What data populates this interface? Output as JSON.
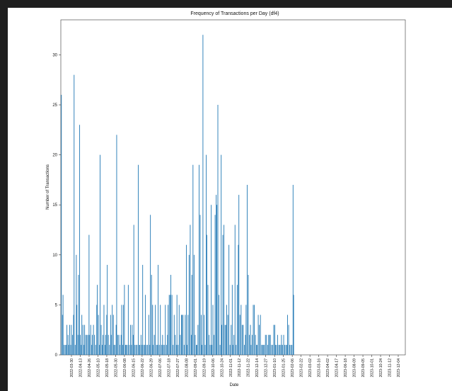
{
  "window": {
    "background": "#1f1f1f"
  },
  "chart_data": {
    "type": "bar",
    "title": "Frequency of Transactions per Day (df4)",
    "xlabel": "Date",
    "ylabel": "Number of Transactions",
    "ylim": [
      0,
      33.5
    ],
    "yticks": [
      0,
      5,
      10,
      15,
      20,
      25,
      30
    ],
    "xlim": [
      "2022-03-24",
      "2023-12-07"
    ],
    "xtick_labels": [
      "2022-03-30",
      "2022-04-13",
      "2022-04-26",
      "2022-05-10",
      "2022-05-18",
      "2022-05-30",
      "2022-06-08",
      "2022-06-15",
      "2022-06-22",
      "2022-06-29",
      "2022-07-06",
      "2022-07-18",
      "2022-07-27",
      "2022-08-08",
      "2022-09-01",
      "2022-09-19",
      "2022-10-06",
      "2022-10-24",
      "2022-11-01",
      "2022-11-12",
      "2022-11-22",
      "2022-12-14",
      "2022-12-27",
      "2023-01-10",
      "2023-01-25",
      "2023-02-06",
      "2023-02-22",
      "2023-03-02",
      "2023-03-16",
      "2023-04-02",
      "2023-04-17",
      "2023-06-18",
      "2023-08-09",
      "2023-09-05",
      "2023-10-01",
      "2023-10-24",
      "2023-11-12",
      "2023-12-04"
    ],
    "bar_color": "#1f77b4",
    "grid": false,
    "points": [
      {
        "x": "2022-03-25",
        "y": 26
      },
      {
        "x": "2022-03-27",
        "y": 4
      },
      {
        "x": "2022-03-28",
        "y": 6
      },
      {
        "x": "2022-03-30",
        "y": 1
      },
      {
        "x": "2022-04-01",
        "y": 1
      },
      {
        "x": "2022-04-03",
        "y": 1
      },
      {
        "x": "2022-04-04",
        "y": 3
      },
      {
        "x": "2022-04-06",
        "y": 2
      },
      {
        "x": "2022-04-07",
        "y": 1
      },
      {
        "x": "2022-04-09",
        "y": 3
      },
      {
        "x": "2022-04-11",
        "y": 1
      },
      {
        "x": "2022-04-12",
        "y": 3
      },
      {
        "x": "2022-04-14",
        "y": 2
      },
      {
        "x": "2022-04-16",
        "y": 4
      },
      {
        "x": "2022-04-17",
        "y": 28
      },
      {
        "x": "2022-04-19",
        "y": 1
      },
      {
        "x": "2022-04-21",
        "y": 10
      },
      {
        "x": "2022-04-22",
        "y": 5
      },
      {
        "x": "2022-04-24",
        "y": 2
      },
      {
        "x": "2022-04-25",
        "y": 8
      },
      {
        "x": "2022-04-27",
        "y": 23
      },
      {
        "x": "2022-04-28",
        "y": 2
      },
      {
        "x": "2022-04-30",
        "y": 1
      },
      {
        "x": "2022-05-01",
        "y": 4
      },
      {
        "x": "2022-05-03",
        "y": 3
      },
      {
        "x": "2022-05-05",
        "y": 1
      },
      {
        "x": "2022-05-06",
        "y": 3
      },
      {
        "x": "2022-05-08",
        "y": 2
      },
      {
        "x": "2022-05-10",
        "y": 2
      },
      {
        "x": "2022-05-12",
        "y": 2
      },
      {
        "x": "2022-05-14",
        "y": 12
      },
      {
        "x": "2022-05-15",
        "y": 2
      },
      {
        "x": "2022-05-17",
        "y": 3
      },
      {
        "x": "2022-05-19",
        "y": 1
      },
      {
        "x": "2022-05-20",
        "y": 2
      },
      {
        "x": "2022-05-22",
        "y": 3
      },
      {
        "x": "2022-05-24",
        "y": 2
      },
      {
        "x": "2022-05-26",
        "y": 1
      },
      {
        "x": "2022-05-28",
        "y": 5
      },
      {
        "x": "2022-05-29",
        "y": 7
      },
      {
        "x": "2022-05-31",
        "y": 4
      },
      {
        "x": "2022-06-02",
        "y": 1
      },
      {
        "x": "2022-06-03",
        "y": 20
      },
      {
        "x": "2022-06-05",
        "y": 3
      },
      {
        "x": "2022-06-07",
        "y": 1
      },
      {
        "x": "2022-06-08",
        "y": 2
      },
      {
        "x": "2022-06-10",
        "y": 5
      },
      {
        "x": "2022-06-12",
        "y": 1
      },
      {
        "x": "2022-06-13",
        "y": 2
      },
      {
        "x": "2022-06-15",
        "y": 4
      },
      {
        "x": "2022-06-16",
        "y": 9
      },
      {
        "x": "2022-06-18",
        "y": 2
      },
      {
        "x": "2022-06-20",
        "y": 1
      },
      {
        "x": "2022-06-22",
        "y": 4
      },
      {
        "x": "2022-06-23",
        "y": 2
      },
      {
        "x": "2022-06-25",
        "y": 5
      },
      {
        "x": "2022-06-27",
        "y": 4
      },
      {
        "x": "2022-06-28",
        "y": 1
      },
      {
        "x": "2022-06-30",
        "y": 1
      },
      {
        "x": "2022-07-02",
        "y": 3
      },
      {
        "x": "2022-07-03",
        "y": 22
      },
      {
        "x": "2022-07-05",
        "y": 2
      },
      {
        "x": "2022-07-07",
        "y": 2
      },
      {
        "x": "2022-07-09",
        "y": 1
      },
      {
        "x": "2022-07-11",
        "y": 2
      },
      {
        "x": "2022-07-12",
        "y": 5
      },
      {
        "x": "2022-07-14",
        "y": 1
      },
      {
        "x": "2022-07-15",
        "y": 5
      },
      {
        "x": "2022-07-17",
        "y": 7
      },
      {
        "x": "2022-07-19",
        "y": 1
      },
      {
        "x": "2022-07-20",
        "y": 1
      },
      {
        "x": "2022-07-22",
        "y": 1
      },
      {
        "x": "2022-07-24",
        "y": 7
      },
      {
        "x": "2022-07-26",
        "y": 1
      },
      {
        "x": "2022-07-28",
        "y": 3
      },
      {
        "x": "2022-07-30",
        "y": 1
      },
      {
        "x": "2022-07-31",
        "y": 3
      },
      {
        "x": "2022-08-02",
        "y": 2
      },
      {
        "x": "2022-08-03",
        "y": 13
      },
      {
        "x": "2022-08-05",
        "y": 1
      },
      {
        "x": "2022-08-07",
        "y": 1
      },
      {
        "x": "2022-08-09",
        "y": 1
      },
      {
        "x": "2022-08-11",
        "y": 19
      },
      {
        "x": "2022-08-13",
        "y": 1
      },
      {
        "x": "2022-08-14",
        "y": 1
      },
      {
        "x": "2022-08-16",
        "y": 2
      },
      {
        "x": "2022-08-18",
        "y": 1
      },
      {
        "x": "2022-08-19",
        "y": 9
      },
      {
        "x": "2022-08-21",
        "y": 1
      },
      {
        "x": "2022-08-23",
        "y": 1
      },
      {
        "x": "2022-08-24",
        "y": 6
      },
      {
        "x": "2022-08-26",
        "y": 1
      },
      {
        "x": "2022-08-28",
        "y": 1
      },
      {
        "x": "2022-08-30",
        "y": 4
      },
      {
        "x": "2022-09-01",
        "y": 1
      },
      {
        "x": "2022-09-02",
        "y": 14
      },
      {
        "x": "2022-09-04",
        "y": 8
      },
      {
        "x": "2022-09-06",
        "y": 5
      },
      {
        "x": "2022-09-07",
        "y": 1
      },
      {
        "x": "2022-09-09",
        "y": 2
      },
      {
        "x": "2022-09-11",
        "y": 5
      },
      {
        "x": "2022-09-13",
        "y": 1
      },
      {
        "x": "2022-09-15",
        "y": 1
      },
      {
        "x": "2022-09-16",
        "y": 9
      },
      {
        "x": "2022-09-18",
        "y": 1
      },
      {
        "x": "2022-09-20",
        "y": 5
      },
      {
        "x": "2022-09-22",
        "y": 1
      },
      {
        "x": "2022-09-24",
        "y": 2
      },
      {
        "x": "2022-09-25",
        "y": 1
      },
      {
        "x": "2022-09-27",
        "y": 1
      },
      {
        "x": "2022-09-29",
        "y": 5
      },
      {
        "x": "2022-10-01",
        "y": 1
      },
      {
        "x": "2022-10-03",
        "y": 2
      },
      {
        "x": "2022-10-04",
        "y": 5
      },
      {
        "x": "2022-10-06",
        "y": 6
      },
      {
        "x": "2022-10-08",
        "y": 6
      },
      {
        "x": "2022-10-09",
        "y": 8
      },
      {
        "x": "2022-10-11",
        "y": 6
      },
      {
        "x": "2022-10-13",
        "y": 1
      },
      {
        "x": "2022-10-15",
        "y": 4
      },
      {
        "x": "2022-10-17",
        "y": 2
      },
      {
        "x": "2022-10-19",
        "y": 1
      },
      {
        "x": "2022-10-20",
        "y": 6
      },
      {
        "x": "2022-10-22",
        "y": 1
      },
      {
        "x": "2022-10-24",
        "y": 5
      },
      {
        "x": "2022-10-26",
        "y": 2
      },
      {
        "x": "2022-10-28",
        "y": 4
      },
      {
        "x": "2022-10-29",
        "y": 4
      },
      {
        "x": "2022-10-31",
        "y": 4
      },
      {
        "x": "2022-11-02",
        "y": 1
      },
      {
        "x": "2022-11-04",
        "y": 4
      },
      {
        "x": "2022-11-06",
        "y": 11
      },
      {
        "x": "2022-11-07",
        "y": 1
      },
      {
        "x": "2022-11-09",
        "y": 4
      },
      {
        "x": "2022-11-11",
        "y": 10
      },
      {
        "x": "2022-11-13",
        "y": 13
      },
      {
        "x": "2022-11-15",
        "y": 2
      },
      {
        "x": "2022-11-16",
        "y": 8
      },
      {
        "x": "2022-11-18",
        "y": 19
      },
      {
        "x": "2022-11-20",
        "y": 10
      },
      {
        "x": "2022-11-22",
        "y": 2
      },
      {
        "x": "2022-11-24",
        "y": 1
      },
      {
        "x": "2022-11-25",
        "y": 1
      },
      {
        "x": "2022-11-27",
        "y": 3
      },
      {
        "x": "2022-11-29",
        "y": 19
      },
      {
        "x": "2022-12-01",
        "y": 14
      },
      {
        "x": "2022-12-03",
        "y": 4
      },
      {
        "x": "2022-12-04",
        "y": 1
      },
      {
        "x": "2022-12-06",
        "y": 32
      },
      {
        "x": "2022-12-08",
        "y": 4
      },
      {
        "x": "2022-12-10",
        "y": 1
      },
      {
        "x": "2022-12-12",
        "y": 20
      },
      {
        "x": "2022-12-13",
        "y": 12
      },
      {
        "x": "2022-12-15",
        "y": 7
      },
      {
        "x": "2022-12-17",
        "y": 2
      },
      {
        "x": "2022-12-19",
        "y": 1
      },
      {
        "x": "2022-12-21",
        "y": 15
      },
      {
        "x": "2022-12-22",
        "y": 1
      },
      {
        "x": "2022-12-24",
        "y": 5
      },
      {
        "x": "2022-12-26",
        "y": 2
      },
      {
        "x": "2022-12-28",
        "y": 14
      },
      {
        "x": "2022-12-30",
        "y": 16
      },
      {
        "x": "2022-12-31",
        "y": 15
      },
      {
        "x": "2023-01-02",
        "y": 25
      },
      {
        "x": "2023-01-04",
        "y": 6
      },
      {
        "x": "2023-01-06",
        "y": 1
      },
      {
        "x": "2023-01-08",
        "y": 20
      },
      {
        "x": "2023-01-09",
        "y": 3
      },
      {
        "x": "2023-01-11",
        "y": 12
      },
      {
        "x": "2023-01-13",
        "y": 13
      },
      {
        "x": "2023-01-15",
        "y": 3
      },
      {
        "x": "2023-01-17",
        "y": 3
      },
      {
        "x": "2023-01-18",
        "y": 5
      },
      {
        "x": "2023-01-20",
        "y": 4
      },
      {
        "x": "2023-01-22",
        "y": 11
      },
      {
        "x": "2023-01-24",
        "y": 1
      },
      {
        "x": "2023-01-26",
        "y": 3
      },
      {
        "x": "2023-01-28",
        "y": 7
      },
      {
        "x": "2023-01-29",
        "y": 1
      },
      {
        "x": "2023-01-31",
        "y": 2
      },
      {
        "x": "2023-02-02",
        "y": 13
      },
      {
        "x": "2023-02-04",
        "y": 1
      },
      {
        "x": "2023-02-06",
        "y": 7
      },
      {
        "x": "2023-02-08",
        "y": 11
      },
      {
        "x": "2023-02-09",
        "y": 16
      },
      {
        "x": "2023-02-11",
        "y": 4
      },
      {
        "x": "2023-02-13",
        "y": 5
      },
      {
        "x": "2023-02-15",
        "y": 3
      },
      {
        "x": "2023-02-17",
        "y": 3
      },
      {
        "x": "2023-02-19",
        "y": 1
      },
      {
        "x": "2023-02-21",
        "y": 2
      },
      {
        "x": "2023-02-22",
        "y": 5
      },
      {
        "x": "2023-02-24",
        "y": 17
      },
      {
        "x": "2023-02-26",
        "y": 8
      },
      {
        "x": "2023-02-28",
        "y": 2
      },
      {
        "x": "2023-03-02",
        "y": 3
      },
      {
        "x": "2023-03-03",
        "y": 1
      },
      {
        "x": "2023-03-05",
        "y": 2
      },
      {
        "x": "2023-03-07",
        "y": 5
      },
      {
        "x": "2023-03-09",
        "y": 5
      },
      {
        "x": "2023-03-11",
        "y": 2
      },
      {
        "x": "2023-03-13",
        "y": 1
      },
      {
        "x": "2023-03-14",
        "y": 1
      },
      {
        "x": "2023-03-16",
        "y": 4
      },
      {
        "x": "2023-03-18",
        "y": 3
      },
      {
        "x": "2023-03-20",
        "y": 4
      },
      {
        "x": "2023-03-22",
        "y": 1
      },
      {
        "x": "2023-03-24",
        "y": 1
      },
      {
        "x": "2023-03-25",
        "y": 1
      },
      {
        "x": "2023-03-27",
        "y": 1
      },
      {
        "x": "2023-03-29",
        "y": 2
      },
      {
        "x": "2023-03-31",
        "y": 2
      },
      {
        "x": "2023-04-02",
        "y": 1
      },
      {
        "x": "2023-04-04",
        "y": 2
      },
      {
        "x": "2023-04-05",
        "y": 2
      },
      {
        "x": "2023-04-07",
        "y": 2
      },
      {
        "x": "2023-04-09",
        "y": 1
      },
      {
        "x": "2023-04-11",
        "y": 1
      },
      {
        "x": "2023-04-13",
        "y": 3
      },
      {
        "x": "2023-04-15",
        "y": 3
      },
      {
        "x": "2023-04-16",
        "y": 1
      },
      {
        "x": "2023-04-18",
        "y": 1
      },
      {
        "x": "2023-04-20",
        "y": 2
      },
      {
        "x": "2023-04-22",
        "y": 1
      },
      {
        "x": "2023-04-24",
        "y": 1
      },
      {
        "x": "2023-04-26",
        "y": 1
      },
      {
        "x": "2023-04-27",
        "y": 2
      },
      {
        "x": "2023-04-29",
        "y": 1
      },
      {
        "x": "2023-05-01",
        "y": 2
      },
      {
        "x": "2023-05-03",
        "y": 1
      },
      {
        "x": "2023-05-05",
        "y": 1
      },
      {
        "x": "2023-05-07",
        "y": 1
      },
      {
        "x": "2023-05-08",
        "y": 4
      },
      {
        "x": "2023-05-10",
        "y": 3
      },
      {
        "x": "2023-05-12",
        "y": 1
      },
      {
        "x": "2023-05-14",
        "y": 1
      },
      {
        "x": "2023-05-16",
        "y": 1
      },
      {
        "x": "2023-05-18",
        "y": 17
      },
      {
        "x": "2023-05-19",
        "y": 6
      }
    ]
  }
}
